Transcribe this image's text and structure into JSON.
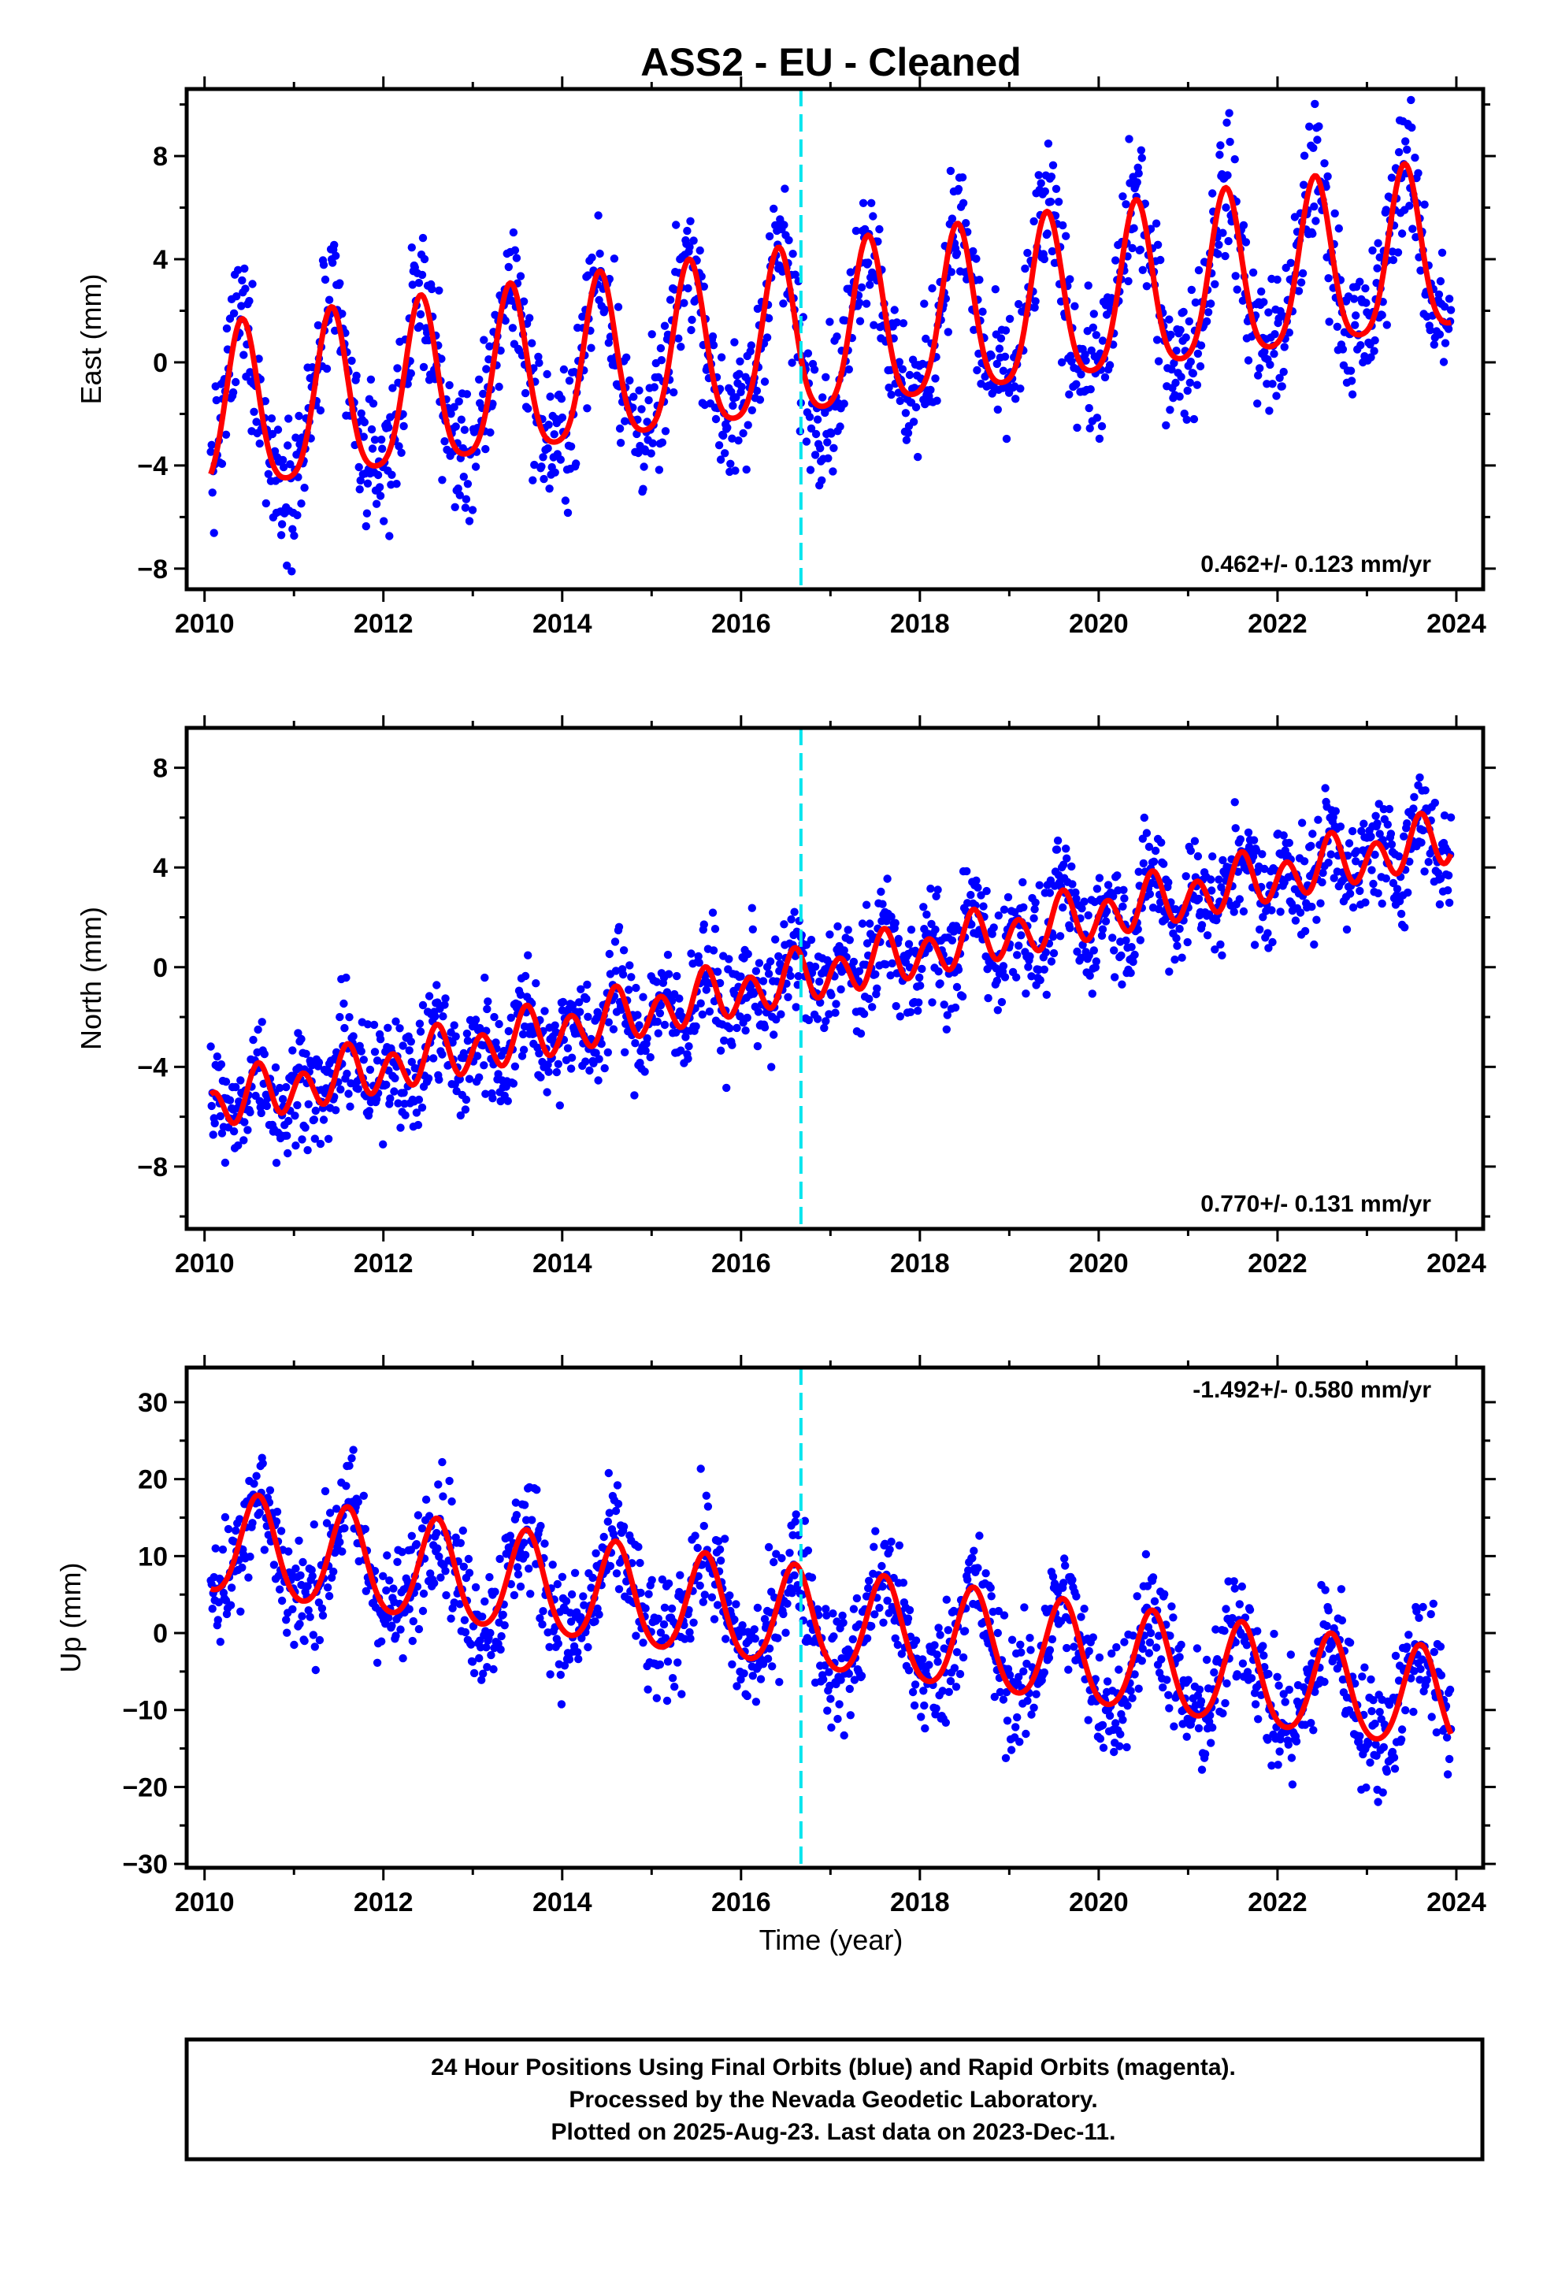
{
  "title": "ASS2  - EU - Cleaned",
  "xlabel": "Time (year)",
  "caption": {
    "line1": "24 Hour Positions Using Final Orbits (blue) and Rapid Orbits (magenta).",
    "line2": "Processed by the Nevada Geodetic Laboratory.",
    "line3": "Plotted on 2025-Aug-23. Last data on 2023-Dec-11."
  },
  "colors": {
    "points": "#0000ff",
    "fit": "#ff0000",
    "event_line": "#00e5ee",
    "frame": "#000000"
  },
  "chart_data": [
    {
      "type": "scatter",
      "name": "east",
      "ylabel": "East (mm)",
      "rate": "0.462+/- 0.123 mm/yr",
      "xlim": [
        2009.8,
        2024.3
      ],
      "ylim": [
        -8.8,
        10.6
      ],
      "xticks": [
        2010,
        2012,
        2014,
        2016,
        2018,
        2020,
        2022,
        2024
      ],
      "yticks": [
        -8,
        -4,
        0,
        4,
        8
      ],
      "event_line_x": 2016.67,
      "data_range": [
        2010.07,
        2023.94
      ],
      "fit": {
        "offset": -2.3,
        "slope": 0.462,
        "t0": 2010,
        "annual_amp": 3.2,
        "annual_peak": 0.42,
        "semiannual_amp": 0.6
      },
      "scatter_sd": 1.3
    },
    {
      "type": "scatter",
      "name": "north",
      "ylabel": "North (mm)",
      "rate": "0.770+/- 0.131 mm/yr",
      "xlim": [
        2009.8,
        2024.3
      ],
      "ylim": [
        -10.5,
        9.6
      ],
      "xticks": [
        2010,
        2012,
        2014,
        2016,
        2018,
        2020,
        2022,
        2024
      ],
      "yticks": [
        -8,
        -4,
        0,
        4,
        8
      ],
      "event_line_x": 2016.67,
      "data_range": [
        2010.07,
        2023.94
      ],
      "fit": {
        "offset": -5.6,
        "slope": 0.77,
        "t0": 2010,
        "annual_amp": 0.4,
        "annual_peak": 0.6,
        "semiannual_amp": 0.9
      },
      "scatter_sd": 1.1
    },
    {
      "type": "scatter",
      "name": "up",
      "ylabel": "Up (mm)",
      "rate": "-1.492+/- 0.580 mm/yr",
      "xlim": [
        2009.8,
        2024.3
      ],
      "ylim": [
        -30.5,
        34.5
      ],
      "xticks": [
        2010,
        2012,
        2014,
        2016,
        2018,
        2020,
        2022,
        2024
      ],
      "yticks": [
        -30,
        -20,
        -10,
        0,
        10,
        20,
        30
      ],
      "event_line_x": 2016.67,
      "data_range": [
        2010.07,
        2023.94
      ],
      "fit": {
        "offset": 11.5,
        "slope": -1.492,
        "t0": 2010,
        "annual_amp": 6.5,
        "annual_peak": 0.6,
        "semiannual_amp": 0.8
      },
      "scatter_sd": 4.0
    }
  ]
}
